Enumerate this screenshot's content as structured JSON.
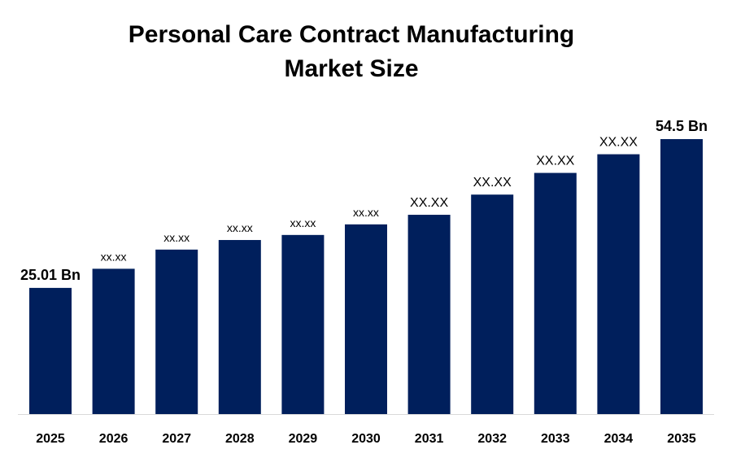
{
  "chart_data": {
    "type": "bar",
    "title_line1": "Personal Care Contract Manufacturing",
    "title_line2": "Market Size",
    "categories": [
      "2025",
      "2026",
      "2027",
      "2028",
      "2029",
      "2030",
      "2031",
      "2032",
      "2033",
      "2034",
      "2035"
    ],
    "values": [
      25.01,
      28.8,
      32.6,
      34.5,
      35.5,
      37.6,
      39.5,
      43.5,
      47.8,
      51.5,
      54.5
    ],
    "data_labels": [
      "25.01 Bn",
      "xx.xx",
      "xx.xx",
      "xx.xx",
      "xx.xx",
      "xx.xx",
      "XX.XX",
      "XX.XX",
      "XX.XX",
      "XX.XX",
      "54.5 Bn"
    ],
    "xlabel": "",
    "ylabel": "",
    "ylim": [
      0,
      60
    ],
    "grid": false,
    "legend": "none",
    "bar_color": "#001f5c"
  }
}
